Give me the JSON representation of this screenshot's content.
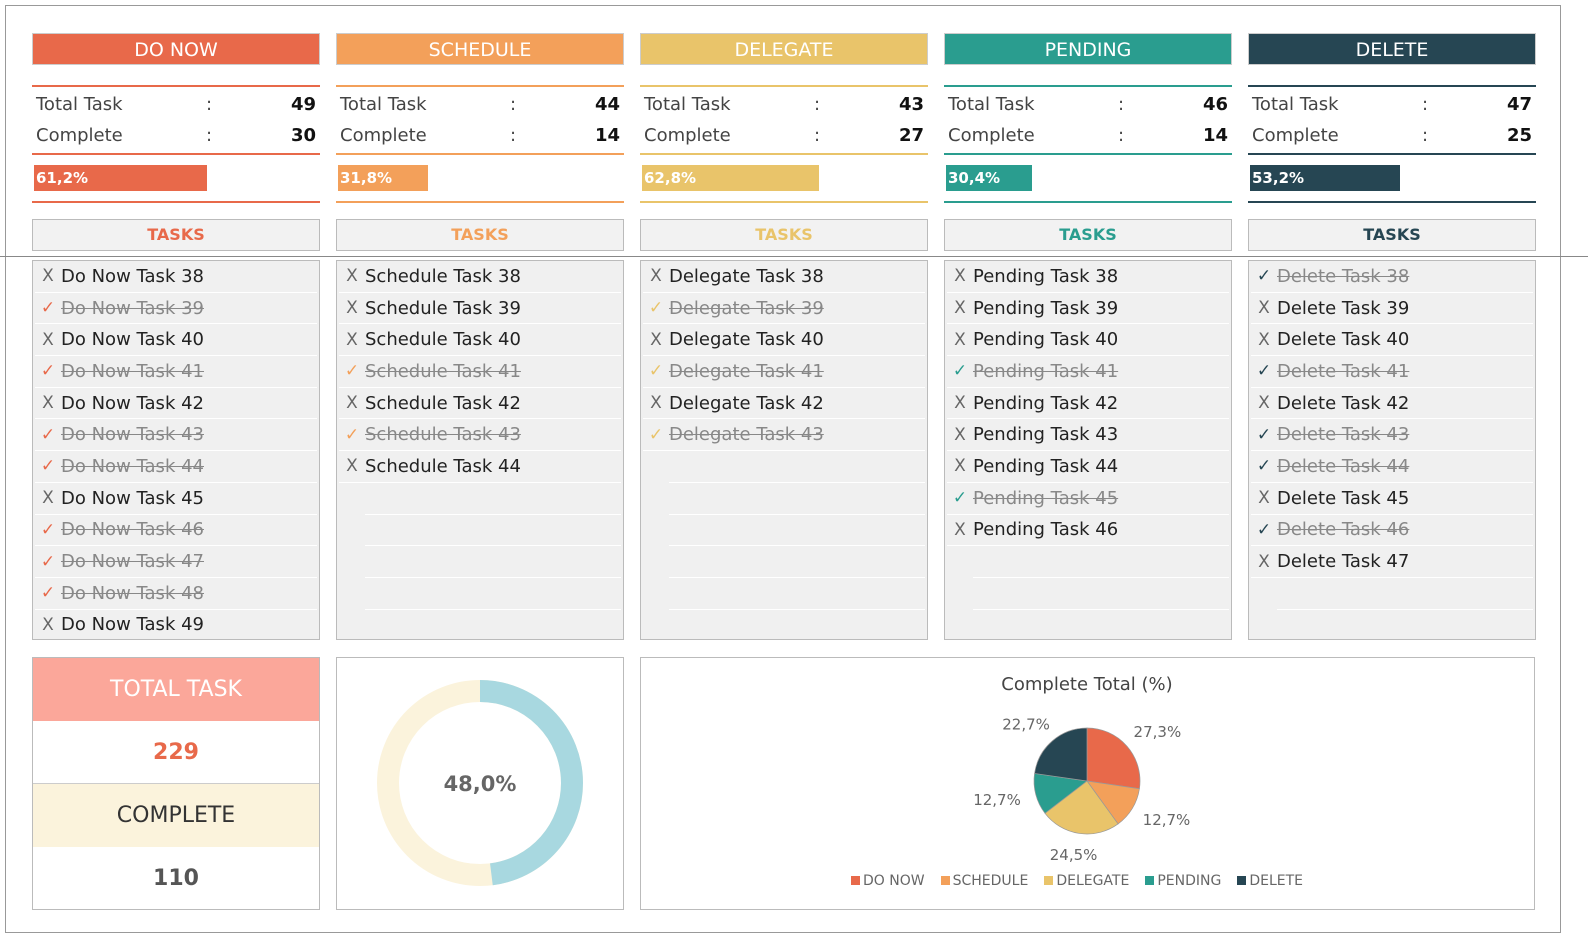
{
  "categories": [
    {
      "title": "DO NOW",
      "color": "#e8694a",
      "total_label": "Total Task",
      "complete_label": "Complete",
      "total": 49,
      "complete": 30,
      "percent_label": "61,2%",
      "percent": 61.2,
      "tasks_label": "TASKS",
      "tasks": [
        {
          "name": "Do Now Task 38",
          "done": false
        },
        {
          "name": "Do Now Task 39",
          "done": true
        },
        {
          "name": "Do Now Task 40",
          "done": false
        },
        {
          "name": "Do Now Task 41",
          "done": true
        },
        {
          "name": "Do Now Task 42",
          "done": false
        },
        {
          "name": "Do Now Task 43",
          "done": true
        },
        {
          "name": "Do Now Task 44",
          "done": true
        },
        {
          "name": "Do Now Task 45",
          "done": false
        },
        {
          "name": "Do Now Task 46",
          "done": true
        },
        {
          "name": "Do Now Task 47",
          "done": true
        },
        {
          "name": "Do Now Task 48",
          "done": true
        },
        {
          "name": "Do Now Task 49",
          "done": false
        }
      ]
    },
    {
      "title": "SCHEDULE",
      "color": "#f3a05a",
      "total_label": "Total Task",
      "complete_label": "Complete",
      "total": 44,
      "complete": 14,
      "percent_label": "31,8%",
      "percent": 31.8,
      "tasks_label": "TASKS",
      "tasks": [
        {
          "name": "Schedule Task 38",
          "done": false
        },
        {
          "name": "Schedule Task 39",
          "done": false
        },
        {
          "name": "Schedule Task 40",
          "done": false
        },
        {
          "name": "Schedule Task 41",
          "done": true
        },
        {
          "name": "Schedule Task 42",
          "done": false
        },
        {
          "name": "Schedule Task 43",
          "done": true
        },
        {
          "name": "Schedule Task 44",
          "done": false
        }
      ]
    },
    {
      "title": "DELEGATE",
      "color": "#e9c46a",
      "total_label": "Total Task",
      "complete_label": "Complete",
      "total": 43,
      "complete": 27,
      "percent_label": "62,8%",
      "percent": 62.8,
      "tasks_label": "TASKS",
      "tasks": [
        {
          "name": "Delegate Task 38",
          "done": false
        },
        {
          "name": "Delegate Task 39",
          "done": true
        },
        {
          "name": "Delegate Task 40",
          "done": false
        },
        {
          "name": "Delegate Task 41",
          "done": true
        },
        {
          "name": "Delegate Task 42",
          "done": false
        },
        {
          "name": "Delegate Task 43",
          "done": true
        }
      ]
    },
    {
      "title": "PENDING",
      "color": "#2a9d8f",
      "total_label": "Total Task",
      "complete_label": "Complete",
      "total": 46,
      "complete": 14,
      "percent_label": "30,4%",
      "percent": 30.4,
      "tasks_label": "TASKS",
      "tasks": [
        {
          "name": "Pending Task 38",
          "done": false
        },
        {
          "name": "Pending Task 39",
          "done": false
        },
        {
          "name": "Pending Task 40",
          "done": false
        },
        {
          "name": "Pending Task 41",
          "done": true
        },
        {
          "name": "Pending Task 42",
          "done": false
        },
        {
          "name": "Pending Task 43",
          "done": false
        },
        {
          "name": "Pending Task 44",
          "done": false
        },
        {
          "name": "Pending Task 45",
          "done": true
        },
        {
          "name": "Pending Task 46",
          "done": false
        }
      ]
    },
    {
      "title": "DELETE",
      "color": "#264653",
      "total_label": "Total Task",
      "complete_label": "Complete",
      "total": 47,
      "complete": 25,
      "percent_label": "53,2%",
      "percent": 53.2,
      "tasks_label": "TASKS",
      "tasks": [
        {
          "name": "Delete Task 38",
          "done": true
        },
        {
          "name": "Delete Task 39",
          "done": false
        },
        {
          "name": "Delete Task 40",
          "done": false
        },
        {
          "name": "Delete Task 41",
          "done": true
        },
        {
          "name": "Delete Task 42",
          "done": false
        },
        {
          "name": "Delete Task 43",
          "done": true
        },
        {
          "name": "Delete Task 44",
          "done": true
        },
        {
          "name": "Delete Task 45",
          "done": false
        },
        {
          "name": "Delete Task 46",
          "done": true
        },
        {
          "name": "Delete Task 47",
          "done": false
        }
      ]
    }
  ],
  "summary": {
    "total_label": "TOTAL TASK",
    "total": "229",
    "complete_label": "COMPLETE",
    "complete": "110"
  },
  "donut": {
    "label": "48,0%",
    "percent": 48.0,
    "fill": "#a8d8e0",
    "rest": "#fbf3dc"
  },
  "chart_data": {
    "type": "pie",
    "title": "Complete Total (%)",
    "categories": [
      "DO NOW",
      "SCHEDULE",
      "DELEGATE",
      "PENDING",
      "DELETE"
    ],
    "values": [
      27.3,
      12.7,
      24.5,
      12.7,
      22.7
    ],
    "labels": [
      "27,3%",
      "12,7%",
      "24,5%",
      "12,7%",
      "22,7%"
    ],
    "colors": [
      "#e8694a",
      "#f3a05a",
      "#e9c46a",
      "#2a9d8f",
      "#264653"
    ],
    "legend": "bottom"
  }
}
